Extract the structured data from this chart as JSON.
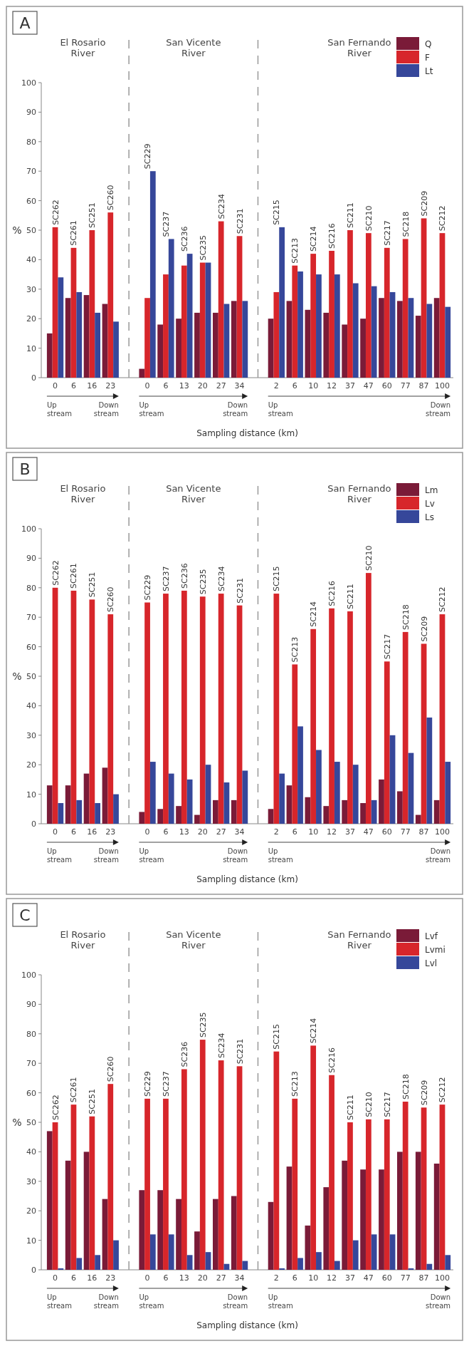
{
  "chart_data": [
    {
      "type": "bar",
      "title": "A",
      "xlabel": "Sampling distance (km)",
      "ylabel": "%",
      "legend": "top right",
      "ylim": [
        0,
        100
      ],
      "yticks": [
        0,
        10,
        20,
        30,
        40,
        50,
        60,
        70,
        80,
        90,
        100
      ],
      "categories": [
        "0",
        "6",
        "16",
        "23",
        null,
        "0",
        "6",
        "13",
        "20",
        "27",
        "34",
        null,
        "2",
        "6",
        "10",
        "12",
        "37",
        "47",
        "60",
        "77",
        "87",
        "100"
      ],
      "series": [
        {
          "name": "Q",
          "color": "#7a1b38",
          "values": [
            15,
            27,
            28,
            25,
            null,
            3,
            18,
            20,
            22,
            22,
            26,
            null,
            20,
            26,
            23,
            22,
            18,
            20,
            27,
            26,
            21,
            27
          ]
        },
        {
          "name": "F",
          "color": "#d7262b",
          "values": [
            51,
            44,
            50,
            56,
            null,
            27,
            35,
            38,
            39,
            53,
            48,
            null,
            29,
            38,
            42,
            43,
            50,
            49,
            44,
            47,
            54,
            49
          ]
        },
        {
          "name": "Lt",
          "color": "#36479a",
          "values": [
            34,
            29,
            22,
            19,
            null,
            70,
            47,
            42,
            39,
            25,
            26,
            null,
            51,
            36,
            35,
            35,
            32,
            31,
            29,
            27,
            25,
            24
          ]
        }
      ],
      "annotations": [
        "El Rosario River",
        "San Vicente River",
        "San Fernando River",
        "Up stream",
        "Down stream",
        "Up stream",
        "Down stream",
        "Up stream",
        "Down stream",
        "SC262",
        "SC261",
        "SC251",
        "SC260",
        "SC229",
        "SC237",
        "SC236",
        "SC235",
        "SC234",
        "SC231",
        "SC215",
        "SC213",
        "SC214",
        "SC216",
        "SC211",
        "SC210",
        "SC217",
        "SC218",
        "SC209",
        "SC212"
      ]
    },
    {
      "type": "bar",
      "title": "B",
      "xlabel": "Sampling distance (km)",
      "ylabel": "%",
      "legend": "top right",
      "ylim": [
        0,
        100
      ],
      "yticks": [
        0,
        10,
        20,
        30,
        40,
        50,
        60,
        70,
        80,
        90,
        100
      ],
      "categories": [
        "0",
        "6",
        "16",
        "23",
        null,
        "0",
        "6",
        "13",
        "20",
        "27",
        "34",
        null,
        "2",
        "6",
        "10",
        "12",
        "37",
        "47",
        "60",
        "77",
        "87",
        "100"
      ],
      "series": [
        {
          "name": "Lm",
          "color": "#7a1b38",
          "values": [
            13,
            13,
            17,
            19,
            null,
            4,
            5,
            6,
            3,
            8,
            8,
            null,
            5,
            13,
            9,
            6,
            8,
            7,
            15,
            11,
            3,
            8
          ]
        },
        {
          "name": "Lv",
          "color": "#d7262b",
          "values": [
            80,
            79,
            76,
            71,
            null,
            75,
            78,
            79,
            77,
            78,
            74,
            null,
            78,
            54,
            66,
            73,
            72,
            85,
            55,
            65,
            61,
            71
          ]
        },
        {
          "name": "Ls",
          "color": "#36479a",
          "values": [
            7,
            8,
            7,
            10,
            null,
            21,
            17,
            15,
            20,
            14,
            18,
            null,
            17,
            33,
            25,
            21,
            20,
            8,
            30,
            24,
            36,
            21
          ]
        }
      ],
      "annotations": [
        "El Rosario River",
        "San Vicente River",
        "San Fernando River",
        "Up stream",
        "Down stream",
        "Up stream",
        "Down stream",
        "Up stream",
        "Down stream",
        "SC262",
        "SC261",
        "SC251",
        "SC260",
        "SC229",
        "SC237",
        "SC236",
        "SC235",
        "SC234",
        "SC231",
        "SC215",
        "SC213",
        "SC214",
        "SC216",
        "SC211",
        "SC210",
        "SC217",
        "SC218",
        "SC209",
        "SC212"
      ]
    },
    {
      "type": "bar",
      "title": "C",
      "xlabel": "Sampling distance (km)",
      "ylabel": "%",
      "legend": "top right",
      "ylim": [
        0,
        100
      ],
      "yticks": [
        0,
        10,
        20,
        30,
        40,
        50,
        60,
        70,
        80,
        90,
        100
      ],
      "categories": [
        "0",
        "6",
        "16",
        "23",
        null,
        "0",
        "6",
        "13",
        "20",
        "27",
        "34",
        null,
        "2",
        "6",
        "10",
        "12",
        "37",
        "47",
        "60",
        "77",
        "87",
        "100"
      ],
      "series": [
        {
          "name": "Lvf",
          "color": "#7a1b38",
          "values": [
            47,
            37,
            40,
            24,
            null,
            27,
            27,
            24,
            13,
            24,
            25,
            null,
            23,
            35,
            15,
            28,
            37,
            34,
            34,
            40,
            40,
            36
          ]
        },
        {
          "name": "Lvmi",
          "color": "#d7262b",
          "values": [
            50,
            56,
            52,
            63,
            null,
            58,
            58,
            68,
            78,
            71,
            69,
            null,
            74,
            58,
            76,
            66,
            50,
            51,
            51,
            57,
            55,
            56
          ]
        },
        {
          "name": "Lvl",
          "color": "#36479a",
          "values": [
            0.5,
            4,
            5,
            10,
            null,
            12,
            12,
            5,
            6,
            2,
            3,
            null,
            0.5,
            4,
            6,
            3,
            10,
            12,
            12,
            0.5,
            2,
            5
          ]
        }
      ],
      "annotations": [
        "El Rosario River",
        "San Vicente River",
        "San Fernando River",
        "Up stream",
        "Down stream",
        "Up stream",
        "Down stream",
        "Up stream",
        "Down stream",
        "SC262",
        "SC261",
        "SC251",
        "SC260",
        "SC229",
        "SC237",
        "SC236",
        "SC235",
        "SC234",
        "SC231",
        "SC215",
        "SC213",
        "SC214",
        "SC216",
        "SC211",
        "SC210",
        "SC217",
        "SC218",
        "SC209",
        "SC212"
      ]
    }
  ]
}
